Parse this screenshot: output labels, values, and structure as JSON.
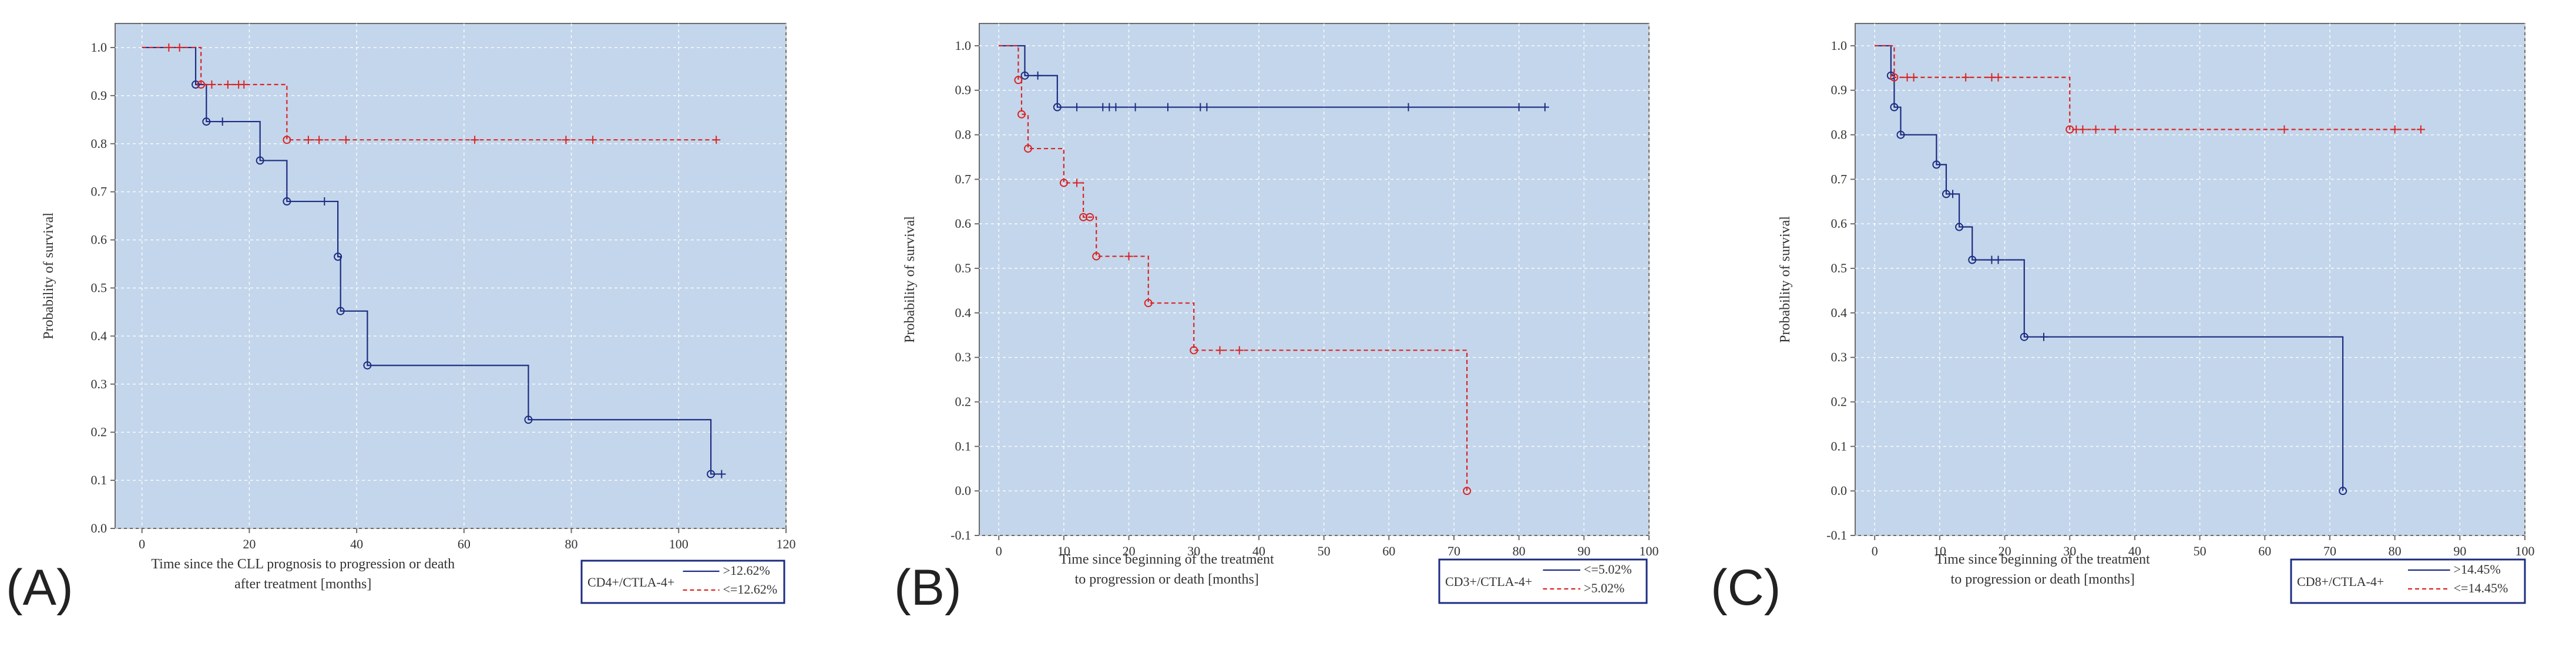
{
  "colors": {
    "plot_bg": "#c4d6eb",
    "axis": "#6b6b6b",
    "series_solid": "#1c2c82",
    "series_dashed": "#d92424"
  },
  "chart_data": [
    {
      "type": "line",
      "subtype": "kaplan-meier",
      "panel_label": "(A)",
      "xlabel": "Time since the CLL prognosis to progression or death after treatment [months]",
      "xlabel_lines": [
        "Time since the CLL prognosis to progression or death",
        "after treatment [months]"
      ],
      "ylabel": "Probability of survival",
      "xlim": [
        -5,
        120
      ],
      "ylim": [
        0,
        1.05
      ],
      "xticks": [
        0,
        20,
        40,
        60,
        80,
        100,
        120
      ],
      "yticks": [
        0.0,
        0.1,
        0.2,
        0.3,
        0.4,
        0.5,
        0.6,
        0.7,
        0.8,
        0.9,
        1.0
      ],
      "ytick_labels": [
        "0.0",
        "0.1",
        "0.2",
        "0.3",
        "0.4",
        "0.5",
        "0.6",
        "0.7",
        "0.8",
        "0.9",
        "1.0"
      ],
      "grid": true,
      "legend_position": "bottom-right",
      "legend_title": "CD4+/CTLA-4+",
      "series": [
        {
          "name": ">12.62%",
          "style": "solid",
          "steps": [
            [
              0,
              1.0
            ],
            [
              10,
              0.923
            ],
            [
              12,
              0.846
            ],
            [
              22,
              0.765
            ],
            [
              27,
              0.68
            ],
            [
              36.5,
              0.565
            ],
            [
              37,
              0.452
            ],
            [
              42,
              0.339
            ],
            [
              72,
              0.226
            ],
            [
              106,
              0.113
            ]
          ],
          "end_x": 108,
          "events": [
            [
              10,
              0.923
            ],
            [
              12,
              0.846
            ],
            [
              22,
              0.765
            ],
            [
              27,
              0.68
            ],
            [
              36.5,
              0.565
            ],
            [
              37,
              0.452
            ],
            [
              42,
              0.339
            ],
            [
              72,
              0.226
            ],
            [
              106,
              0.113
            ]
          ],
          "censored": [
            [
              15,
              0.846
            ],
            [
              34,
              0.68
            ],
            [
              108,
              0.113
            ]
          ]
        },
        {
          "name": "<=12.62%",
          "style": "dashed",
          "steps": [
            [
              0,
              1.0
            ],
            [
              11,
              0.923
            ],
            [
              27,
              0.808
            ]
          ],
          "end_x": 107,
          "events": [
            [
              11,
              0.923
            ],
            [
              27,
              0.808
            ]
          ],
          "censored": [
            [
              5,
              1.0
            ],
            [
              7,
              1.0
            ],
            [
              13,
              0.923
            ],
            [
              16,
              0.923
            ],
            [
              18,
              0.923
            ],
            [
              19,
              0.923
            ],
            [
              31,
              0.808
            ],
            [
              33,
              0.808
            ],
            [
              38,
              0.808
            ],
            [
              62,
              0.808
            ],
            [
              79,
              0.808
            ],
            [
              84,
              0.808
            ],
            [
              107,
              0.808
            ]
          ]
        }
      ]
    },
    {
      "type": "line",
      "subtype": "kaplan-meier",
      "panel_label": "(B)",
      "xlabel": "Time since beginning of the treatment to progression or death [months]",
      "xlabel_lines": [
        "Time since beginning of the treatment",
        "to progression or death [months]"
      ],
      "ylabel": "Probability of survival",
      "xlim": [
        -3,
        100
      ],
      "ylim": [
        -0.1,
        1.05
      ],
      "xticks": [
        0,
        10,
        20,
        30,
        40,
        50,
        60,
        70,
        80,
        90,
        100
      ],
      "yticks": [
        -0.1,
        0.0,
        0.1,
        0.2,
        0.3,
        0.4,
        0.5,
        0.6,
        0.7,
        0.8,
        0.9,
        1.0
      ],
      "ytick_labels": [
        "-0.1",
        "0.0",
        "0.1",
        "0.2",
        "0.3",
        "0.4",
        "0.5",
        "0.6",
        "0.7",
        "0.8",
        "0.9",
        "1.0"
      ],
      "grid": true,
      "legend_position": "bottom-right",
      "legend_title": "CD3+/CTLA-4+",
      "series": [
        {
          "name": "<=5.02%",
          "style": "solid",
          "steps": [
            [
              0,
              1.0
            ],
            [
              4,
              0.933
            ],
            [
              9,
              0.862
            ]
          ],
          "end_x": 84,
          "events": [
            [
              4,
              0.933
            ],
            [
              9,
              0.862
            ]
          ],
          "censored": [
            [
              6,
              0.933
            ],
            [
              12,
              0.862
            ],
            [
              16,
              0.862
            ],
            [
              17,
              0.862
            ],
            [
              18,
              0.862
            ],
            [
              21,
              0.862
            ],
            [
              26,
              0.862
            ],
            [
              31,
              0.862
            ],
            [
              32,
              0.862
            ],
            [
              63,
              0.862
            ],
            [
              80,
              0.862
            ],
            [
              84,
              0.862
            ]
          ]
        },
        {
          "name": ">5.02%",
          "style": "dashed",
          "steps": [
            [
              0,
              1.0
            ],
            [
              3,
              0.923
            ],
            [
              3.5,
              0.846
            ],
            [
              4.5,
              0.769
            ],
            [
              10,
              0.692
            ],
            [
              13,
              0.615
            ],
            [
              15,
              0.527
            ],
            [
              23,
              0.422
            ],
            [
              30,
              0.316
            ],
            [
              72,
              0.0
            ]
          ],
          "end_x": 72,
          "events": [
            [
              3,
              0.923
            ],
            [
              3.5,
              0.846
            ],
            [
              4.5,
              0.769
            ],
            [
              10,
              0.692
            ],
            [
              13,
              0.615
            ],
            [
              14,
              0.615
            ],
            [
              15,
              0.527
            ],
            [
              23,
              0.422
            ],
            [
              30,
              0.316
            ],
            [
              72,
              0.0
            ]
          ],
          "censored": [
            [
              12,
              0.692
            ],
            [
              20,
              0.527
            ],
            [
              34,
              0.316
            ],
            [
              37,
              0.316
            ]
          ]
        }
      ]
    },
    {
      "type": "line",
      "subtype": "kaplan-meier",
      "panel_label": "(C)",
      "xlabel": "Time since beginning of the treatment to progression or death [months]",
      "xlabel_lines": [
        "Time since beginning of the treatment",
        "to progression or death [months]"
      ],
      "ylabel": "Probability of survival",
      "xlim": [
        -3,
        100
      ],
      "ylim": [
        -0.1,
        1.05
      ],
      "xticks": [
        0,
        10,
        20,
        30,
        40,
        50,
        60,
        70,
        80,
        90,
        100
      ],
      "yticks": [
        -0.1,
        0.0,
        0.1,
        0.2,
        0.3,
        0.4,
        0.5,
        0.6,
        0.7,
        0.8,
        0.9,
        1.0
      ],
      "ytick_labels": [
        "-0.1",
        "0.0",
        "0.1",
        "0.2",
        "0.3",
        "0.4",
        "0.5",
        "0.6",
        "0.7",
        "0.8",
        "0.9",
        "1.0"
      ],
      "grid": true,
      "legend_position": "bottom-right",
      "legend_title": "CD8+/CTLA-4+",
      "series": [
        {
          "name": ">14.45%",
          "style": "solid",
          "steps": [
            [
              0,
              1.0
            ],
            [
              2.5,
              0.933
            ],
            [
              3,
              0.862
            ],
            [
              4,
              0.8
            ],
            [
              9.5,
              0.733
            ],
            [
              11,
              0.667
            ],
            [
              13,
              0.593
            ],
            [
              15,
              0.519
            ],
            [
              23,
              0.346
            ],
            [
              72,
              0.0
            ]
          ],
          "end_x": 72,
          "events": [
            [
              2.5,
              0.933
            ],
            [
              3,
              0.862
            ],
            [
              4,
              0.8
            ],
            [
              9.5,
              0.733
            ],
            [
              11,
              0.667
            ],
            [
              13,
              0.593
            ],
            [
              15,
              0.519
            ],
            [
              23,
              0.346
            ],
            [
              72,
              0.0
            ]
          ],
          "censored": [
            [
              12,
              0.667
            ],
            [
              18,
              0.519
            ],
            [
              19,
              0.519
            ],
            [
              26,
              0.346
            ]
          ]
        },
        {
          "name": "<=14.45%",
          "style": "dashed",
          "steps": [
            [
              0,
              1.0
            ],
            [
              3,
              0.929
            ],
            [
              30,
              0.812
            ]
          ],
          "end_x": 84,
          "events": [
            [
              3,
              0.929
            ],
            [
              30,
              0.812
            ]
          ],
          "censored": [
            [
              5,
              0.929
            ],
            [
              6,
              0.929
            ],
            [
              14,
              0.929
            ],
            [
              18,
              0.929
            ],
            [
              19,
              0.929
            ],
            [
              31,
              0.812
            ],
            [
              32,
              0.812
            ],
            [
              34,
              0.812
            ],
            [
              37,
              0.812
            ],
            [
              63,
              0.812
            ],
            [
              80,
              0.812
            ],
            [
              84,
              0.812
            ]
          ]
        }
      ]
    }
  ]
}
